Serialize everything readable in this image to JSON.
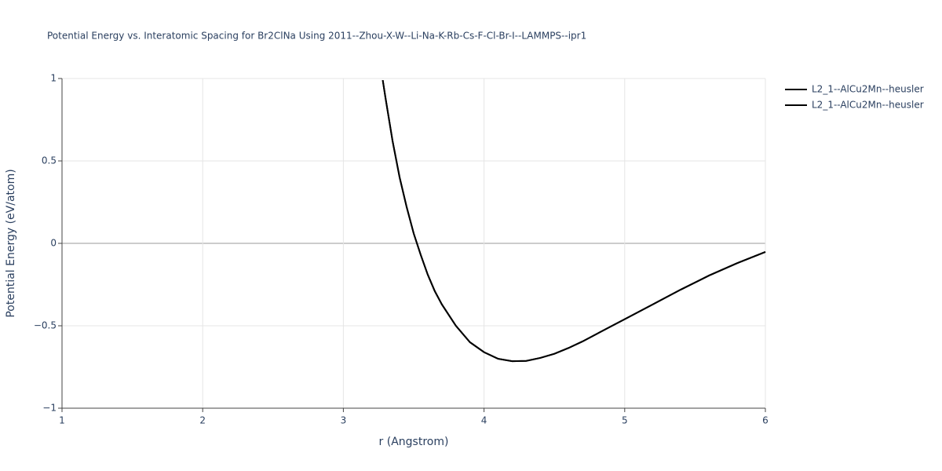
{
  "chart_data": {
    "type": "line",
    "title": "Potential Energy vs. Interatomic Spacing for Br2ClNa Using 2011--Zhou-X-W--Li-Na-K-Rb-Cs-F-Cl-Br-I--LAMMPS--ipr1",
    "x_label": "r (Angstrom)",
    "y_label": "Potential Energy (eV/atom)",
    "x": [
      3.28,
      3.3,
      3.35,
      3.4,
      3.45,
      3.5,
      3.55,
      3.6,
      3.65,
      3.7,
      3.8,
      3.9,
      4.0,
      4.1,
      4.2,
      4.3,
      4.4,
      4.5,
      4.6,
      4.7,
      4.8,
      4.9,
      5.0,
      5.2,
      5.4,
      5.6,
      5.8,
      6.0
    ],
    "series": [
      {
        "name": "L2_1--AlCu2Mn--heusler",
        "color": "#000000",
        "values": [
          0.99,
          0.88,
          0.62,
          0.4,
          0.22,
          0.06,
          -0.07,
          -0.19,
          -0.29,
          -0.37,
          -0.5,
          -0.6,
          -0.66,
          -0.7,
          -0.715,
          -0.713,
          -0.695,
          -0.67,
          -0.635,
          -0.595,
          -0.55,
          -0.505,
          -0.46,
          -0.37,
          -0.28,
          -0.195,
          -0.12,
          -0.052
        ]
      },
      {
        "name": "L2_1--AlCu2Mn--heusler",
        "color": "#000000",
        "values": [
          0.99,
          0.88,
          0.62,
          0.4,
          0.22,
          0.06,
          -0.07,
          -0.19,
          -0.29,
          -0.37,
          -0.5,
          -0.6,
          -0.66,
          -0.7,
          -0.715,
          -0.713,
          -0.695,
          -0.67,
          -0.635,
          -0.595,
          -0.55,
          -0.505,
          -0.46,
          -0.37,
          -0.28,
          -0.195,
          -0.12,
          -0.052
        ]
      }
    ],
    "xlim": [
      1,
      6
    ],
    "xticks": [
      1,
      2,
      3,
      4,
      5,
      6
    ],
    "ylim": [
      -1,
      1
    ],
    "yticks": [
      {
        "value": -1,
        "label": "−1"
      },
      {
        "value": -0.5,
        "label": "−0.5"
      },
      0,
      0.5,
      1
    ],
    "grid": true,
    "legend": "top-right"
  }
}
